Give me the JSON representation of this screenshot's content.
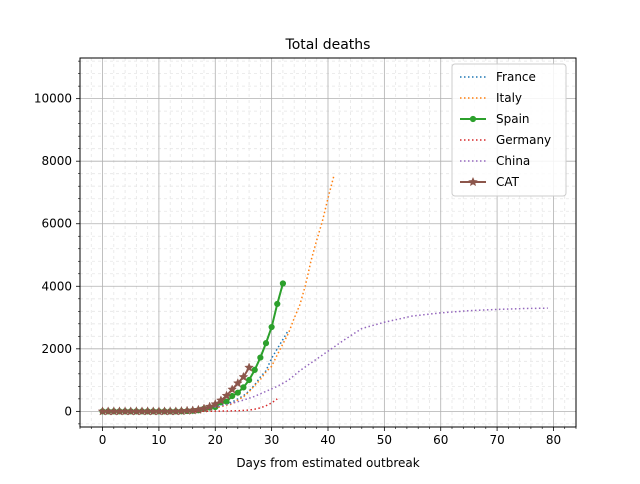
{
  "chart_data": {
    "type": "line",
    "title": "Total deaths",
    "xlabel": "Days from estimated outbreak",
    "ylabel": "",
    "xlim": [
      -4,
      84
    ],
    "ylim": [
      -500,
      11300
    ],
    "x_ticks": [
      0,
      10,
      20,
      30,
      40,
      50,
      60,
      70,
      80
    ],
    "y_ticks": [
      0,
      2000,
      4000,
      6000,
      8000,
      10000
    ],
    "grid": true,
    "minor_grid": true,
    "legend_position": "top-right",
    "series": [
      {
        "name": "France",
        "color": "#1f77b4",
        "style": "dotted",
        "marker": "none",
        "x": [
          0,
          2,
          4,
          6,
          8,
          10,
          12,
          14,
          15,
          16,
          17,
          18,
          19,
          20,
          21,
          22,
          23,
          24,
          25,
          26,
          27,
          28,
          29,
          30,
          31,
          32,
          33
        ],
        "y": [
          0,
          0,
          1,
          2,
          2,
          3,
          5,
          10,
          20,
          30,
          50,
          80,
          100,
          130,
          180,
          240,
          300,
          400,
          500,
          650,
          850,
          1100,
          1300,
          1700,
          2000,
          2300,
          2600
        ]
      },
      {
        "name": "Italy",
        "color": "#ff7f0e",
        "style": "dotted",
        "marker": "none",
        "x": [
          0,
          2,
          4,
          6,
          8,
          10,
          12,
          14,
          15,
          16,
          17,
          18,
          19,
          20,
          21,
          22,
          23,
          24,
          25,
          26,
          27,
          28,
          29,
          30,
          31,
          32,
          33,
          34,
          35,
          36,
          37,
          38,
          39,
          40,
          41
        ],
        "y": [
          0,
          0,
          2,
          3,
          4,
          7,
          12,
          17,
          21,
          29,
          34,
          52,
          79,
          107,
          148,
          197,
          233,
          366,
          463,
          631,
          827,
          1016,
          1266,
          1441,
          1809,
          2158,
          2503,
          2978,
          3405,
          4032,
          4825,
          5476,
          6077,
          6820,
          7503
        ]
      },
      {
        "name": "Spain",
        "color": "#2ca02c",
        "style": "solid",
        "marker": "circle",
        "x": [
          0,
          1,
          2,
          3,
          4,
          5,
          6,
          7,
          8,
          9,
          10,
          11,
          12,
          13,
          14,
          15,
          16,
          17,
          18,
          19,
          20,
          21,
          22,
          23,
          24,
          25,
          26,
          27,
          28,
          29,
          30,
          31,
          32
        ],
        "y": [
          0,
          0,
          0,
          0,
          0,
          0,
          0,
          0,
          0,
          0,
          0,
          0,
          0,
          0,
          3,
          10,
          17,
          35,
          84,
          121,
          136,
          288,
          309,
          491,
          598,
          767,
          1002,
          1326,
          1720,
          2182,
          2696,
          3434,
          4089
        ]
      },
      {
        "name": "Germany",
        "color": "#d62728",
        "style": "dotted",
        "marker": "none",
        "x": [
          0,
          2,
          4,
          6,
          8,
          10,
          12,
          14,
          16,
          18,
          20,
          22,
          24,
          26,
          27,
          28,
          29,
          30,
          31
        ],
        "y": [
          0,
          0,
          0,
          0,
          0,
          0,
          0,
          0,
          0,
          2,
          6,
          12,
          20,
          40,
          70,
          110,
          180,
          270,
          400
        ]
      },
      {
        "name": "China",
        "color": "#9467bd",
        "style": "dotted",
        "marker": "none",
        "x": [
          0,
          5,
          10,
          13,
          15,
          17,
          19,
          21,
          23,
          25,
          27,
          29,
          31,
          33,
          35,
          37,
          39,
          41,
          43,
          46,
          50,
          55,
          60,
          65,
          70,
          75,
          79
        ],
        "y": [
          0,
          0,
          10,
          20,
          40,
          70,
          110,
          170,
          260,
          360,
          480,
          640,
          800,
          1000,
          1300,
          1550,
          1800,
          2050,
          2300,
          2650,
          2850,
          3050,
          3150,
          3220,
          3260,
          3290,
          3300
        ]
      },
      {
        "name": "CAT",
        "color": "#8c564b",
        "style": "solid",
        "marker": "star",
        "x": [
          0,
          1,
          2,
          3,
          4,
          5,
          6,
          7,
          8,
          9,
          10,
          11,
          12,
          13,
          14,
          15,
          16,
          17,
          18,
          19,
          20,
          21,
          22,
          23,
          24,
          25,
          26
        ],
        "y": [
          0,
          0,
          0,
          0,
          0,
          0,
          0,
          0,
          0,
          0,
          0,
          0,
          0,
          0,
          10,
          20,
          30,
          50,
          90,
          150,
          230,
          350,
          500,
          700,
          900,
          1100,
          1400
        ]
      }
    ]
  }
}
